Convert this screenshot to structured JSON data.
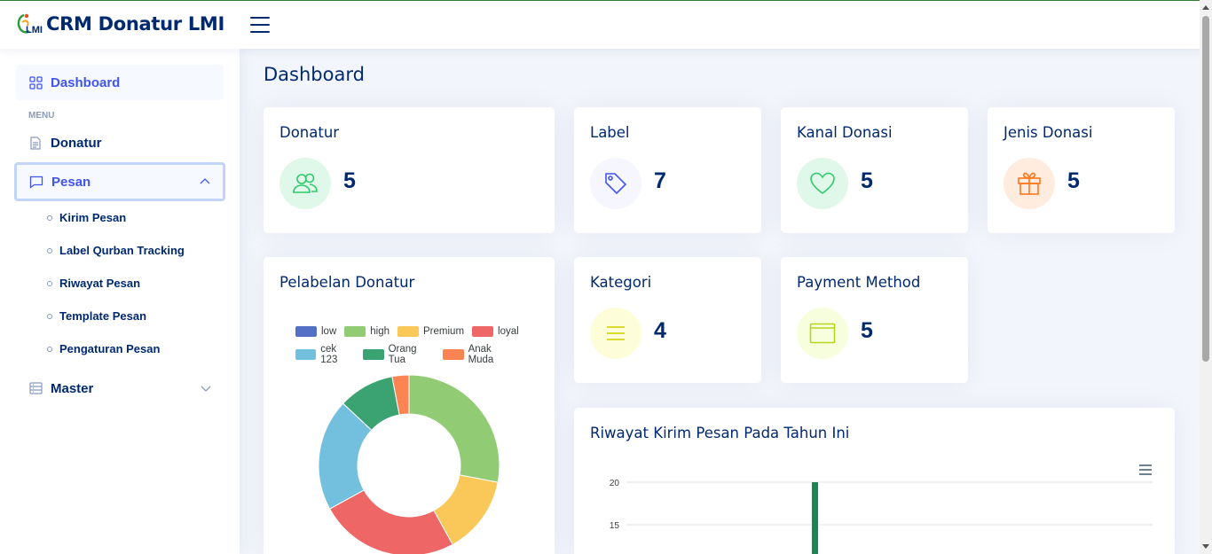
{
  "app": {
    "title": "CRM Donatur LMI",
    "logo_text": "LMI"
  },
  "sidebar": {
    "dashboard": "Dashboard",
    "menu_heading": "MENU",
    "donatur": "Donatur",
    "pesan": "Pesan",
    "pesan_children": [
      "Kirim Pesan",
      "Label Qurban Tracking",
      "Riwayat Pesan",
      "Template Pesan",
      "Pengaturan Pesan"
    ],
    "master": "Master"
  },
  "page": {
    "title": "Dashboard"
  },
  "cards": {
    "donatur": {
      "title": "Donatur",
      "value": "5",
      "icon": "users-icon",
      "color": "#2eca6a"
    },
    "label": {
      "title": "Label",
      "value": "7",
      "icon": "tag-icon",
      "color": "#4154f1"
    },
    "kanal": {
      "title": "Kanal Donasi",
      "value": "5",
      "icon": "heart-icon",
      "color": "#2eca6a"
    },
    "jenis": {
      "title": "Jenis Donasi",
      "value": "5",
      "icon": "gift-icon",
      "color": "#ff771d"
    },
    "kategori": {
      "title": "Kategori",
      "value": "4",
      "icon": "list-icon",
      "color": "#d4d41a"
    },
    "payment": {
      "title": "Payment Method",
      "value": "5",
      "icon": "wallet-icon",
      "color": "#b5d61a"
    }
  },
  "pelabelan": {
    "title": "Pelabelan Donatur",
    "chart_data": {
      "type": "pie",
      "labels": [
        "high",
        "Premium",
        "loyal",
        "cek 123",
        "Orang Tua",
        "Anak Muda"
      ],
      "values": [
        28,
        14,
        25,
        20,
        10,
        3
      ],
      "colors": [
        "#91cc75",
        "#fac858",
        "#ee6666",
        "#73c0de",
        "#3ba272",
        "#fc8452"
      ],
      "legend": [
        {
          "name": "low",
          "color": "#5470c6"
        },
        {
          "name": "high",
          "color": "#91cc75"
        },
        {
          "name": "Premium",
          "color": "#fac858"
        },
        {
          "name": "loyal",
          "color": "#ee6666"
        },
        {
          "name": "cek 123",
          "color": "#73c0de"
        },
        {
          "name": "Orang Tua",
          "color": "#3ba272"
        },
        {
          "name": "Anak Muda",
          "color": "#fc8452"
        }
      ],
      "legend_position": "top"
    }
  },
  "riwayat": {
    "title": "Riwayat Kirim Pesan Pada Tahun Ini",
    "chart_data": {
      "type": "bar",
      "y_ticks": [
        "20",
        "15"
      ],
      "ylim": [
        0,
        20
      ],
      "values": [
        20
      ]
    }
  }
}
